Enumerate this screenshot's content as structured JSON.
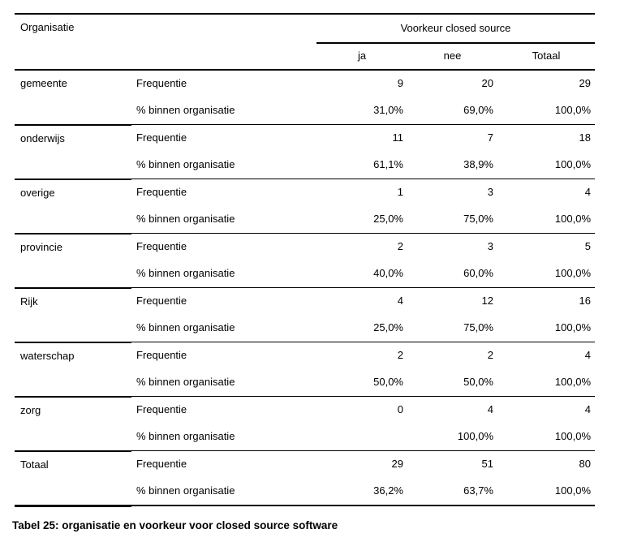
{
  "colors": {
    "background": "#ffffff",
    "text": "#000000",
    "rule": "#000000"
  },
  "caption": "Tabel 25: organisatie en voorkeur voor closed source software",
  "table": {
    "corner_header": "Organisatie",
    "span_header": "Voorkeur closed source",
    "col_headers": [
      "ja",
      "nee",
      "Totaal"
    ],
    "row_label_freq": "Frequentie",
    "row_label_pct": "% binnen organisatie",
    "groups": [
      {
        "org": "gemeente",
        "freq": [
          "9",
          "20",
          "29"
        ],
        "pct": [
          "31,0%",
          "69,0%",
          "100,0%"
        ]
      },
      {
        "org": "onderwijs",
        "freq": [
          "11",
          "7",
          "18"
        ],
        "pct": [
          "61,1%",
          "38,9%",
          "100,0%"
        ]
      },
      {
        "org": "overige",
        "freq": [
          "1",
          "3",
          "4"
        ],
        "pct": [
          "25,0%",
          "75,0%",
          "100,0%"
        ]
      },
      {
        "org": "provincie",
        "freq": [
          "2",
          "3",
          "5"
        ],
        "pct": [
          "40,0%",
          "60,0%",
          "100,0%"
        ]
      },
      {
        "org": "Rijk",
        "freq": [
          "4",
          "12",
          "16"
        ],
        "pct": [
          "25,0%",
          "75,0%",
          "100,0%"
        ]
      },
      {
        "org": "waterschap",
        "freq": [
          "2",
          "2",
          "4"
        ],
        "pct": [
          "50,0%",
          "50,0%",
          "100,0%"
        ]
      },
      {
        "org": "zorg",
        "freq": [
          "0",
          "4",
          "4"
        ],
        "pct": [
          "",
          "100,0%",
          "100,0%"
        ]
      },
      {
        "org": "Totaal",
        "freq": [
          "29",
          "51",
          "80"
        ],
        "pct": [
          "36,2%",
          "63,7%",
          "100,0%"
        ]
      }
    ]
  },
  "chart_data": {
    "type": "table",
    "title": "Tabel 25: organisatie en voorkeur voor closed source software",
    "row_variable": "Organisatie",
    "column_variable": "Voorkeur closed source",
    "columns": [
      "ja",
      "nee",
      "Totaal"
    ],
    "rows": [
      {
        "organisatie": "gemeente",
        "frequentie": [
          9,
          20,
          29
        ],
        "pct_binnen_organisatie": [
          "31,0%",
          "69,0%",
          "100,0%"
        ]
      },
      {
        "organisatie": "onderwijs",
        "frequentie": [
          11,
          7,
          18
        ],
        "pct_binnen_organisatie": [
          "61,1%",
          "38,9%",
          "100,0%"
        ]
      },
      {
        "organisatie": "overige",
        "frequentie": [
          1,
          3,
          4
        ],
        "pct_binnen_organisatie": [
          "25,0%",
          "75,0%",
          "100,0%"
        ]
      },
      {
        "organisatie": "provincie",
        "frequentie": [
          2,
          3,
          5
        ],
        "pct_binnen_organisatie": [
          "40,0%",
          "60,0%",
          "100,0%"
        ]
      },
      {
        "organisatie": "Rijk",
        "frequentie": [
          4,
          12,
          16
        ],
        "pct_binnen_organisatie": [
          "25,0%",
          "75,0%",
          "100,0%"
        ]
      },
      {
        "organisatie": "waterschap",
        "frequentie": [
          2,
          2,
          4
        ],
        "pct_binnen_organisatie": [
          "50,0%",
          "50,0%",
          "100,0%"
        ]
      },
      {
        "organisatie": "zorg",
        "frequentie": [
          0,
          4,
          4
        ],
        "pct_binnen_organisatie": [
          "",
          "100,0%",
          "100,0%"
        ]
      },
      {
        "organisatie": "Totaal",
        "frequentie": [
          29,
          51,
          80
        ],
        "pct_binnen_organisatie": [
          "36,2%",
          "63,7%",
          "100,0%"
        ]
      }
    ]
  }
}
